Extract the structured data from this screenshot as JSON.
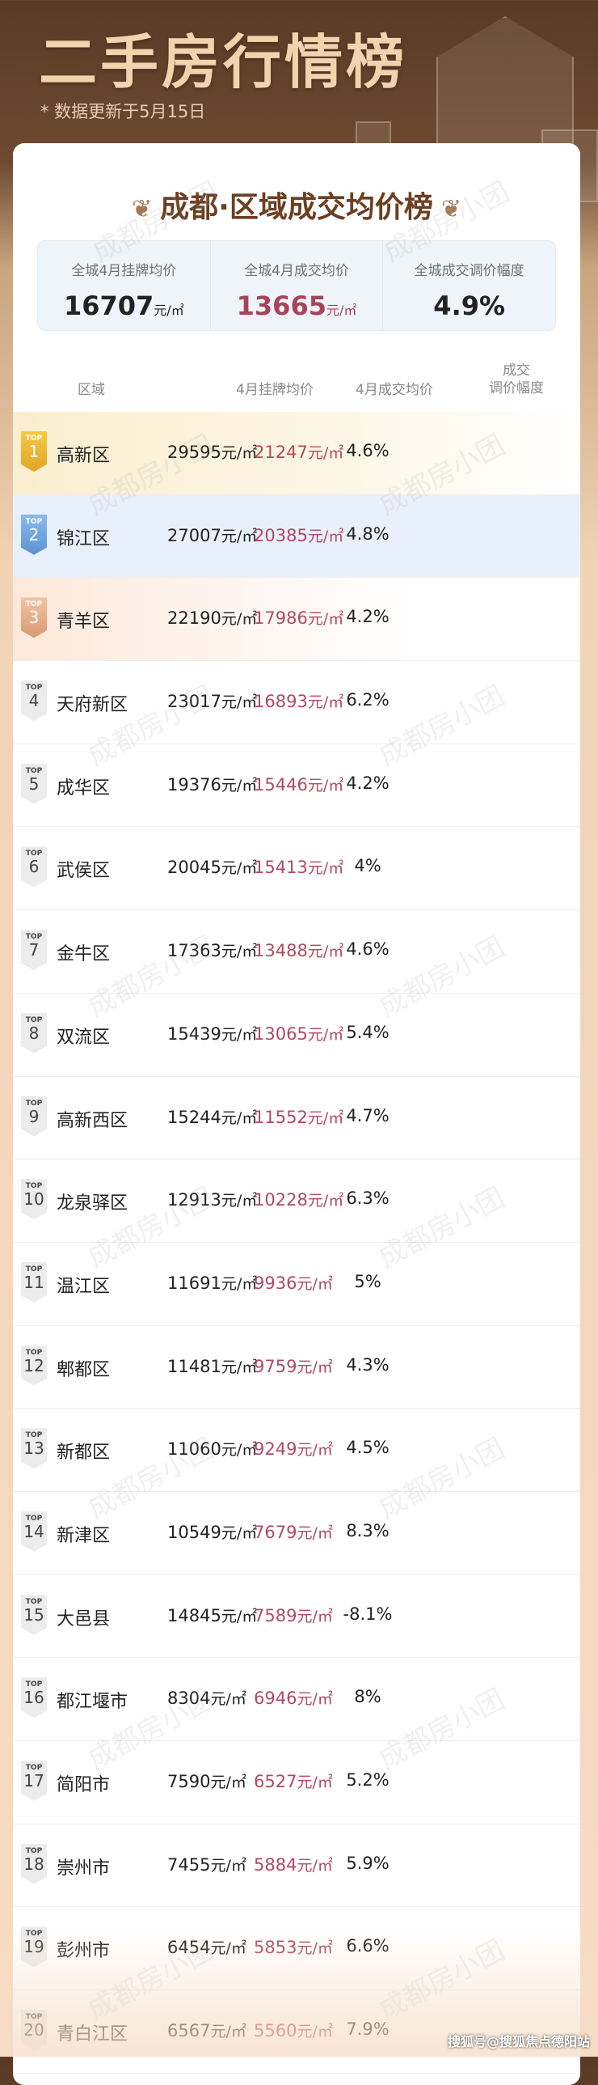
{
  "header": {
    "title": "二手房行情榜",
    "update_note": "* 数据更新于5月15日"
  },
  "card": {
    "title": "成都·区域成交均价榜"
  },
  "summary": [
    {
      "label": "全城4月挂牌均价",
      "value": "16707",
      "unit": "元/㎡"
    },
    {
      "label": "全城4月成交均价",
      "value": "13665",
      "unit": "元/㎡"
    },
    {
      "label": "全城成交调价幅度",
      "value": "4.9%",
      "unit": ""
    }
  ],
  "columns": {
    "area": "区域",
    "listing": "4月挂牌均价",
    "deal": "4月成交均价",
    "change": "成交\n调价幅度"
  },
  "badge_prefix": "TOP",
  "rows": [
    {
      "rank": "1",
      "name": "高新区",
      "listing": "29595",
      "deal": "21247",
      "unit": "元/㎡",
      "change": "4.6%"
    },
    {
      "rank": "2",
      "name": "锦江区",
      "listing": "27007",
      "deal": "20385",
      "unit": "元/㎡",
      "change": "4.8%"
    },
    {
      "rank": "3",
      "name": "青羊区",
      "listing": "22190",
      "deal": "17986",
      "unit": "元/㎡",
      "change": "4.2%"
    },
    {
      "rank": "4",
      "name": "天府新区",
      "listing": "23017",
      "deal": "16893",
      "unit": "元/㎡",
      "change": "6.2%"
    },
    {
      "rank": "5",
      "name": "成华区",
      "listing": "19376",
      "deal": "15446",
      "unit": "元/㎡",
      "change": "4.2%"
    },
    {
      "rank": "6",
      "name": "武侯区",
      "listing": "20045",
      "deal": "15413",
      "unit": "元/㎡",
      "change": "4%"
    },
    {
      "rank": "7",
      "name": "金牛区",
      "listing": "17363",
      "deal": "13488",
      "unit": "元/㎡",
      "change": "4.6%"
    },
    {
      "rank": "8",
      "name": "双流区",
      "listing": "15439",
      "deal": "13065",
      "unit": "元/㎡",
      "change": "5.4%"
    },
    {
      "rank": "9",
      "name": "高新西区",
      "listing": "15244",
      "deal": "11552",
      "unit": "元/㎡",
      "change": "4.7%"
    },
    {
      "rank": "10",
      "name": "龙泉驿区",
      "listing": "12913",
      "deal": "10228",
      "unit": "元/㎡",
      "change": "6.3%"
    },
    {
      "rank": "11",
      "name": "温江区",
      "listing": "11691",
      "deal": "9936",
      "unit": "元/㎡",
      "change": "5%"
    },
    {
      "rank": "12",
      "name": "郫都区",
      "listing": "11481",
      "deal": "9759",
      "unit": "元/㎡",
      "change": "4.3%"
    },
    {
      "rank": "13",
      "name": "新都区",
      "listing": "11060",
      "deal": "9249",
      "unit": "元/㎡",
      "change": "4.5%"
    },
    {
      "rank": "14",
      "name": "新津区",
      "listing": "10549",
      "deal": "7679",
      "unit": "元/㎡",
      "change": "8.3%"
    },
    {
      "rank": "15",
      "name": "大邑县",
      "listing": "14845",
      "deal": "7589",
      "unit": "元/㎡",
      "change": "-8.1%"
    },
    {
      "rank": "16",
      "name": "都江堰市",
      "listing": "8304",
      "deal": "6946",
      "unit": "元/㎡",
      "change": "8%"
    },
    {
      "rank": "17",
      "name": "简阳市",
      "listing": "7590",
      "deal": "6527",
      "unit": "元/㎡",
      "change": "5.2%"
    },
    {
      "rank": "18",
      "name": "崇州市",
      "listing": "7455",
      "deal": "5884",
      "unit": "元/㎡",
      "change": "5.9%"
    },
    {
      "rank": "19",
      "name": "彭州市",
      "listing": "6454",
      "deal": "5853",
      "unit": "元/㎡",
      "change": "6.6%"
    },
    {
      "rank": "20",
      "name": "青白江区",
      "listing": "6567",
      "deal": "5560",
      "unit": "元/㎡",
      "change": "7.9%"
    }
  ],
  "watermark": "成都房小团",
  "credit": "搜狐号@搜狐焦点德阳站",
  "colors": {
    "deal_price": "#b04a63",
    "title_brown": "#6b3f22",
    "gold": "#e0a526",
    "blue": "#5b93d6",
    "bronze": "#d89a72"
  }
}
